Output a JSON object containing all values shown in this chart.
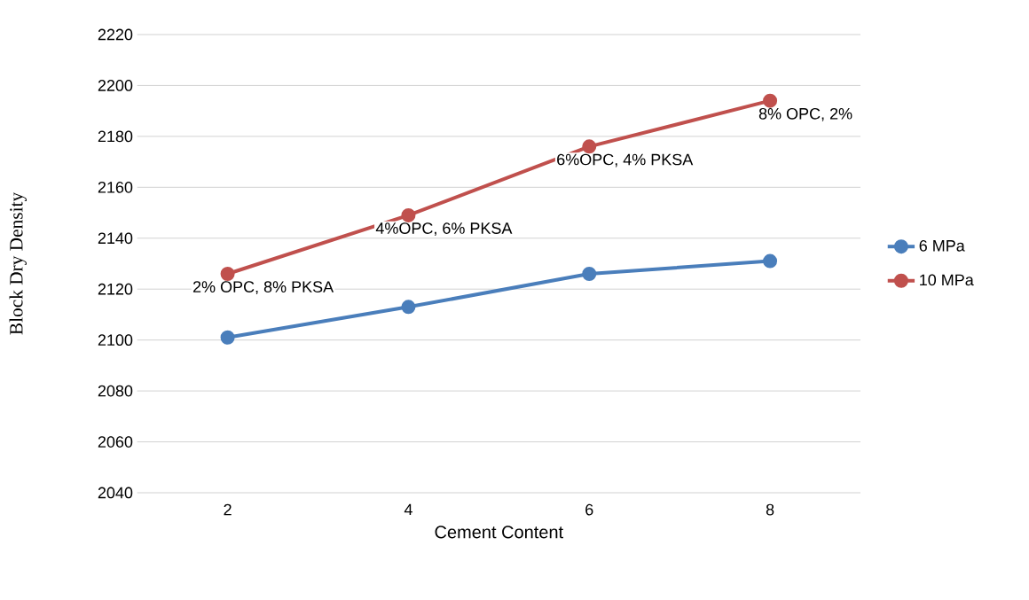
{
  "chart_data": {
    "type": "line",
    "xlabel": "Cement Content",
    "ylabel": "Block Dry Density",
    "categories": [
      "2",
      "4",
      "6",
      "8"
    ],
    "series": [
      {
        "name": "6 MPa",
        "color": "#4a7ebb",
        "values": [
          2101,
          2113,
          2126,
          2131
        ]
      },
      {
        "name": "10 MPa",
        "color": "#c0504d",
        "values": [
          2126,
          2149,
          2176,
          2194
        ]
      }
    ],
    "annotations": [
      {
        "text": "2% OPC, 8% PKSA",
        "x": "2",
        "y": 2126
      },
      {
        "text": "4%OPC, 6% PKSA",
        "x": "4",
        "y": 2149
      },
      {
        "text": "6%OPC, 4% PKSA",
        "x": "6",
        "y": 2176
      },
      {
        "text": "8% OPC, 2%",
        "x": "8",
        "y": 2194
      }
    ],
    "ylim": [
      2040,
      2220
    ],
    "yticks": [
      2040,
      2060,
      2080,
      2100,
      2120,
      2140,
      2160,
      2180,
      2200,
      2220
    ],
    "grid": "y",
    "legend": "right",
    "marker": "circle",
    "line_style": "solid"
  }
}
